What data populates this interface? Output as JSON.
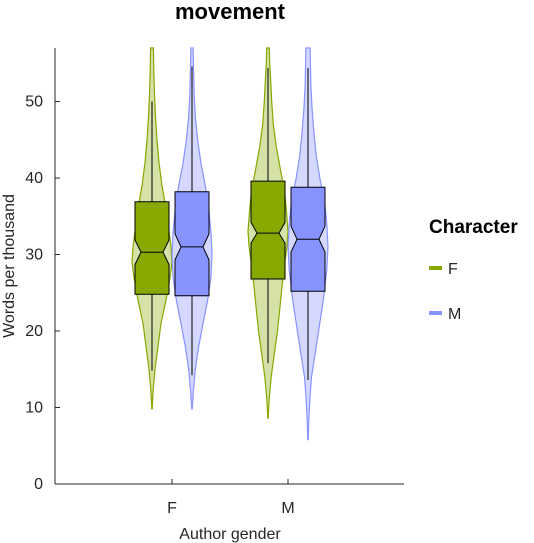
{
  "chart_data": {
    "type": "violin-box",
    "title": "movement",
    "xlabel": "Author gender",
    "ylabel": "Words per thousand",
    "ylim": [
      0,
      57
    ],
    "yticks": [
      0,
      10,
      20,
      30,
      40,
      50
    ],
    "categories": [
      "F",
      "M"
    ],
    "legend": {
      "title": "Character",
      "position": "right",
      "entries": [
        {
          "label": "F",
          "color": "#86A800"
        },
        {
          "label": "M",
          "color": "#8793FF"
        }
      ]
    },
    "grid": false,
    "series": [
      {
        "name": "F",
        "color": "#86A800",
        "groups": [
          {
            "category": "F",
            "box": {
              "q1": 24.8,
              "median": 30.3,
              "q3": 36.9,
              "notch_low": 28.7,
              "notch_high": 31.9,
              "whisker_low": 14.8,
              "whisker_high": 50.0
            },
            "violin": {
              "min": 9.8,
              "max": 57.0,
              "profile": [
                [
                  9.8,
                  0.2
                ],
                [
                  12,
                  1
                ],
                [
                  15,
                  3
                ],
                [
                  18,
                  6
                ],
                [
                  21,
                  9
                ],
                [
                  24,
                  14
                ],
                [
                  27,
                  18
                ],
                [
                  29,
                  20
                ],
                [
                  31,
                  19
                ],
                [
                  33,
                  17
                ],
                [
                  36,
                  14
                ],
                [
                  39,
                  10
                ],
                [
                  42,
                  7
                ],
                [
                  45,
                  5
                ],
                [
                  48,
                  3.5
                ],
                [
                  51,
                  2.5
                ],
                [
                  54,
                  1.8
                ],
                [
                  57,
                  1.4
                ]
              ]
            }
          },
          {
            "category": "M",
            "box": {
              "q1": 26.8,
              "median": 32.8,
              "q3": 39.6,
              "notch_low": 31.5,
              "notch_high": 34.2,
              "whisker_low": 15.8,
              "whisker_high": 54.4
            },
            "violin": {
              "min": 8.6,
              "max": 57.0,
              "profile": [
                [
                  8.6,
                  0.2
                ],
                [
                  11,
                  1
                ],
                [
                  14,
                  3
                ],
                [
                  17,
                  6
                ],
                [
                  20,
                  9
                ],
                [
                  24,
                  12
                ],
                [
                  28,
                  15
                ],
                [
                  31,
                  18
                ],
                [
                  33,
                  19
                ],
                [
                  35,
                  18
                ],
                [
                  38,
                  16
                ],
                [
                  41,
                  12
                ],
                [
                  44,
                  8
                ],
                [
                  47,
                  5
                ],
                [
                  50,
                  3.5
                ],
                [
                  53,
                  2.5
                ],
                [
                  55,
                  1.6
                ],
                [
                  57,
                  1.2
                ]
              ]
            }
          }
        ]
      },
      {
        "name": "M",
        "color": "#8793FF",
        "groups": [
          {
            "category": "F",
            "box": {
              "q1": 24.6,
              "median": 31.0,
              "q3": 38.2,
              "notch_low": 29.3,
              "notch_high": 32.7,
              "whisker_low": 14.2,
              "whisker_high": 54.6
            },
            "violin": {
              "min": 9.8,
              "max": 57.0,
              "profile": [
                [
                  9.8,
                  0.2
                ],
                [
                  12,
                  1.2
                ],
                [
                  15,
                  3
                ],
                [
                  18,
                  6
                ],
                [
                  21,
                  10
                ],
                [
                  24,
                  14
                ],
                [
                  27,
                  17
                ],
                [
                  30,
                  18
                ],
                [
                  33,
                  17
                ],
                [
                  36,
                  15
                ],
                [
                  39,
                  12
                ],
                [
                  42,
                  8
                ],
                [
                  45,
                  5
                ],
                [
                  48,
                  3
                ],
                [
                  51,
                  2
                ],
                [
                  54,
                  1.4
                ],
                [
                  57,
                  1
                ]
              ]
            }
          },
          {
            "category": "M",
            "box": {
              "q1": 25.2,
              "median": 32.0,
              "q3": 38.8,
              "notch_low": 30.3,
              "notch_high": 33.7,
              "whisker_low": 13.6,
              "whisker_high": 54.4
            },
            "violin": {
              "min": 5.8,
              "max": 57.0,
              "profile": [
                [
                  5.8,
                  0.2
                ],
                [
                  8,
                  0.6
                ],
                [
                  11,
                  1.5
                ],
                [
                  14,
                  3
                ],
                [
                  17,
                  6
                ],
                [
                  20,
                  9
                ],
                [
                  24,
                  13
                ],
                [
                  28,
                  16
                ],
                [
                  31,
                  17
                ],
                [
                  34,
                  16
                ],
                [
                  37,
                  14
                ],
                [
                  40,
                  10
                ],
                [
                  43,
                  7
                ],
                [
                  46,
                  5
                ],
                [
                  49,
                  3.5
                ],
                [
                  52,
                  2.5
                ],
                [
                  55,
                  2
                ],
                [
                  57,
                  1.8
                ]
              ]
            }
          }
        ]
      }
    ]
  }
}
